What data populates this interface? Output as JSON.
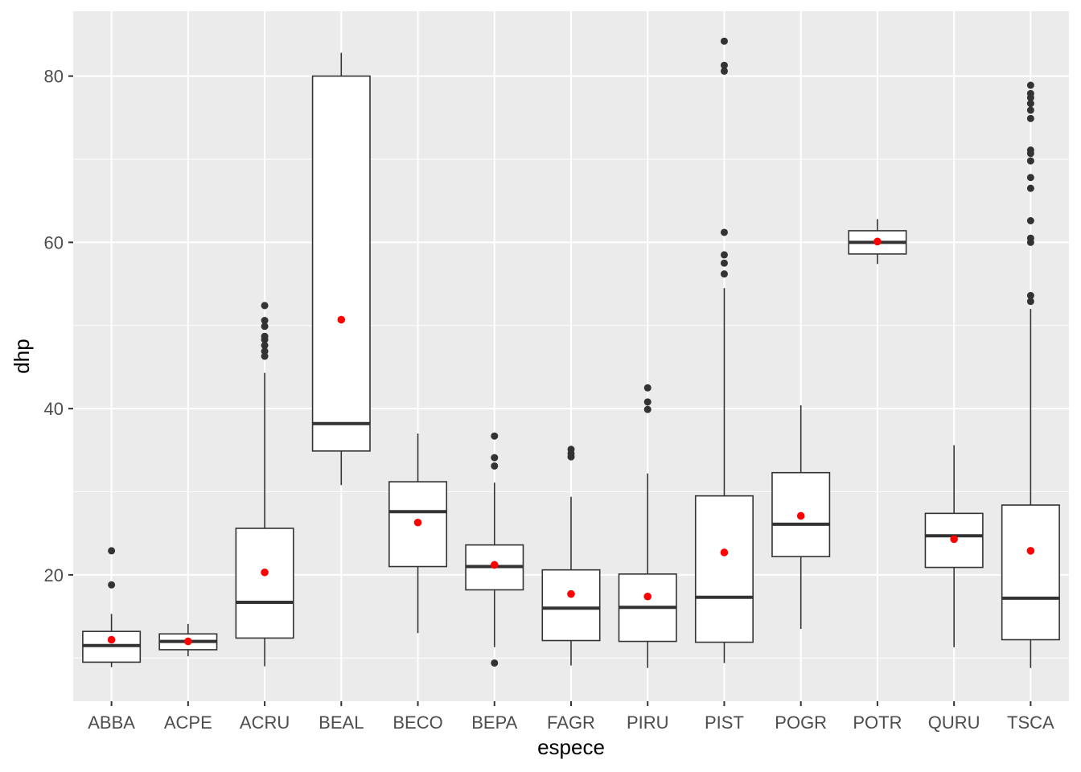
{
  "chart_data": {
    "type": "boxplot",
    "xlabel": "espece",
    "ylabel": "dhp",
    "ylim": [
      4.8,
      87.8
    ],
    "yticks": [
      20,
      40,
      60,
      80
    ],
    "grid": true,
    "colors": {
      "panel": "#ebebeb",
      "grid": "#ffffff",
      "box_fill": "#ffffff",
      "box_line": "#333333",
      "outlier": "#333333",
      "mean_point": "#ff0000"
    },
    "categories": [
      "ABBA",
      "ACPE",
      "ACRU",
      "BEAL",
      "BECO",
      "BEPA",
      "FAGR",
      "PIRU",
      "PIST",
      "POGR",
      "POTR",
      "QURU",
      "TSCA"
    ],
    "boxes": [
      {
        "category": "ABBA",
        "min": 8.9,
        "q1": 9.5,
        "median": 11.5,
        "q3": 13.2,
        "max": 15.3,
        "mean": 12.2,
        "outliers": [
          18.8,
          22.9
        ]
      },
      {
        "category": "ACPE",
        "min": 10.2,
        "q1": 11.0,
        "median": 12.0,
        "q3": 12.9,
        "max": 14.1,
        "mean": 12.0,
        "outliers": []
      },
      {
        "category": "ACRU",
        "min": 9.0,
        "q1": 12.4,
        "median": 16.7,
        "q3": 25.6,
        "max": 44.3,
        "mean": 20.3,
        "outliers": [
          46.3,
          46.9,
          47.6,
          48.3,
          48.7,
          49.9,
          50.6,
          52.4
        ]
      },
      {
        "category": "BEAL",
        "min": 30.8,
        "q1": 34.9,
        "median": 38.2,
        "q3": 80.0,
        "max": 82.8,
        "mean": 50.7,
        "outliers": []
      },
      {
        "category": "BECO",
        "min": 13.0,
        "q1": 21.0,
        "median": 27.6,
        "q3": 31.2,
        "max": 37.0,
        "mean": 26.3,
        "outliers": []
      },
      {
        "category": "BEPA",
        "min": 11.3,
        "q1": 18.2,
        "median": 21.0,
        "q3": 23.6,
        "max": 31.1,
        "mean": 21.2,
        "outliers": [
          9.4,
          33.1,
          34.1,
          36.7
        ]
      },
      {
        "category": "FAGR",
        "min": 9.1,
        "q1": 12.1,
        "median": 16.0,
        "q3": 20.6,
        "max": 29.4,
        "mean": 17.7,
        "outliers": [
          34.2,
          34.6,
          35.1
        ]
      },
      {
        "category": "PIRU",
        "min": 8.8,
        "q1": 12.0,
        "median": 16.1,
        "q3": 20.1,
        "max": 32.2,
        "mean": 17.4,
        "outliers": [
          39.9,
          40.8,
          42.5
        ]
      },
      {
        "category": "PIST",
        "min": 9.4,
        "q1": 11.9,
        "median": 17.3,
        "q3": 29.5,
        "max": 54.5,
        "mean": 22.7,
        "outliers": [
          56.2,
          57.5,
          58.5,
          61.2,
          80.6,
          81.3,
          84.2
        ]
      },
      {
        "category": "POGR",
        "min": 13.5,
        "q1": 22.2,
        "median": 26.1,
        "q3": 32.3,
        "max": 40.4,
        "mean": 27.1,
        "outliers": []
      },
      {
        "category": "POTR",
        "min": 57.4,
        "q1": 58.6,
        "median": 60.0,
        "q3": 61.4,
        "max": 62.8,
        "mean": 60.1,
        "outliers": []
      },
      {
        "category": "QURU",
        "min": 11.3,
        "q1": 20.9,
        "median": 24.7,
        "q3": 27.4,
        "max": 35.6,
        "mean": 24.3,
        "outliers": []
      },
      {
        "category": "TSCA",
        "min": 8.8,
        "q1": 12.2,
        "median": 17.2,
        "q3": 28.4,
        "max": 52.0,
        "mean": 22.9,
        "outliers": [
          52.9,
          53.6,
          60.0,
          60.5,
          62.6,
          66.5,
          67.8,
          69.8,
          70.7,
          71.1,
          74.9,
          75.9,
          76.7,
          77.4,
          77.9,
          78.9
        ]
      }
    ]
  }
}
